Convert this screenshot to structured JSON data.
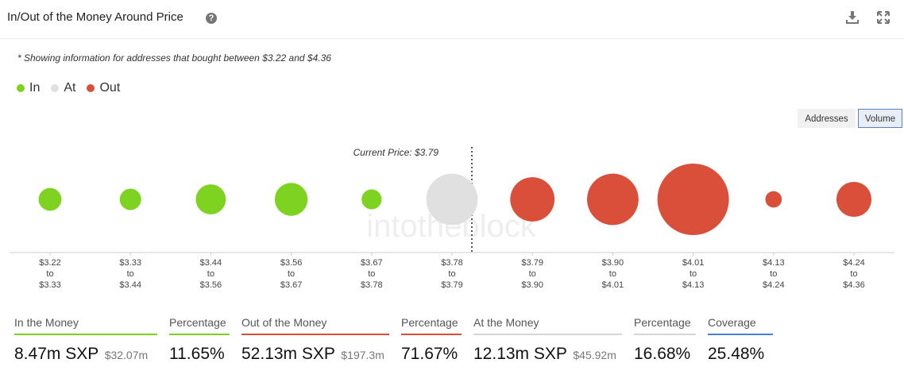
{
  "header": {
    "title": "In/Out of the Money Around Price",
    "help_glyph": "?",
    "icons": [
      "help-icon",
      "download-icon",
      "expand-icon"
    ]
  },
  "note": "* Showing information for addresses that bought between $3.22 and $4.36",
  "legend": [
    {
      "label": "In",
      "color": "#7ed321"
    },
    {
      "label": "At",
      "color": "#e0e0e0"
    },
    {
      "label": "Out",
      "color": "#d94f3a"
    }
  ],
  "toggles": {
    "addresses": "Addresses",
    "volume": "Volume",
    "selected": "Volume"
  },
  "chart_data": {
    "type": "bubble",
    "current_price_label": "Current Price: $3.79",
    "ranges": [
      {
        "from": "$3.22",
        "to": "$3.33",
        "status": "In",
        "relative_size": 0.32
      },
      {
        "from": "$3.33",
        "to": "$3.44",
        "status": "In",
        "relative_size": 0.3
      },
      {
        "from": "$3.44",
        "to": "$3.56",
        "status": "In",
        "relative_size": 0.42
      },
      {
        "from": "$3.56",
        "to": "$3.67",
        "status": "In",
        "relative_size": 0.46
      },
      {
        "from": "$3.67",
        "to": "$3.78",
        "status": "In",
        "relative_size": 0.28
      },
      {
        "from": "$3.78",
        "to": "$3.79",
        "status": "At",
        "relative_size": 0.72
      },
      {
        "from": "$3.79",
        "to": "$3.90",
        "status": "Out",
        "relative_size": 0.62
      },
      {
        "from": "$3.90",
        "to": "$4.01",
        "status": "Out",
        "relative_size": 0.72
      },
      {
        "from": "$4.01",
        "to": "$4.13",
        "status": "Out",
        "relative_size": 1.0
      },
      {
        "from": "$4.13",
        "to": "$4.24",
        "status": "Out",
        "relative_size": 0.23
      },
      {
        "from": "$4.24",
        "to": "$4.36",
        "status": "Out",
        "relative_size": 0.49
      }
    ],
    "range_joiner": "to",
    "watermark": "intotheblock"
  },
  "stats": {
    "in_label": "In the Money",
    "in_value": "8.47m SXP",
    "in_usd": "$32.07m",
    "in_pct_label": "Percentage",
    "in_pct": "11.65%",
    "out_label": "Out of the Money",
    "out_value": "52.13m SXP",
    "out_usd": "$197.3m",
    "out_pct_label": "Percentage",
    "out_pct": "71.67%",
    "at_label": "At the Money",
    "at_value": "12.13m SXP",
    "at_usd": "$45.92m",
    "at_pct_label": "Percentage",
    "at_pct": "16.68%",
    "coverage_label": "Coverage",
    "coverage": "25.48%"
  },
  "colors": {
    "in": "#7ed321",
    "at": "#e0e0e0",
    "out": "#d94f3a",
    "coverage": "#4a7fd6"
  }
}
